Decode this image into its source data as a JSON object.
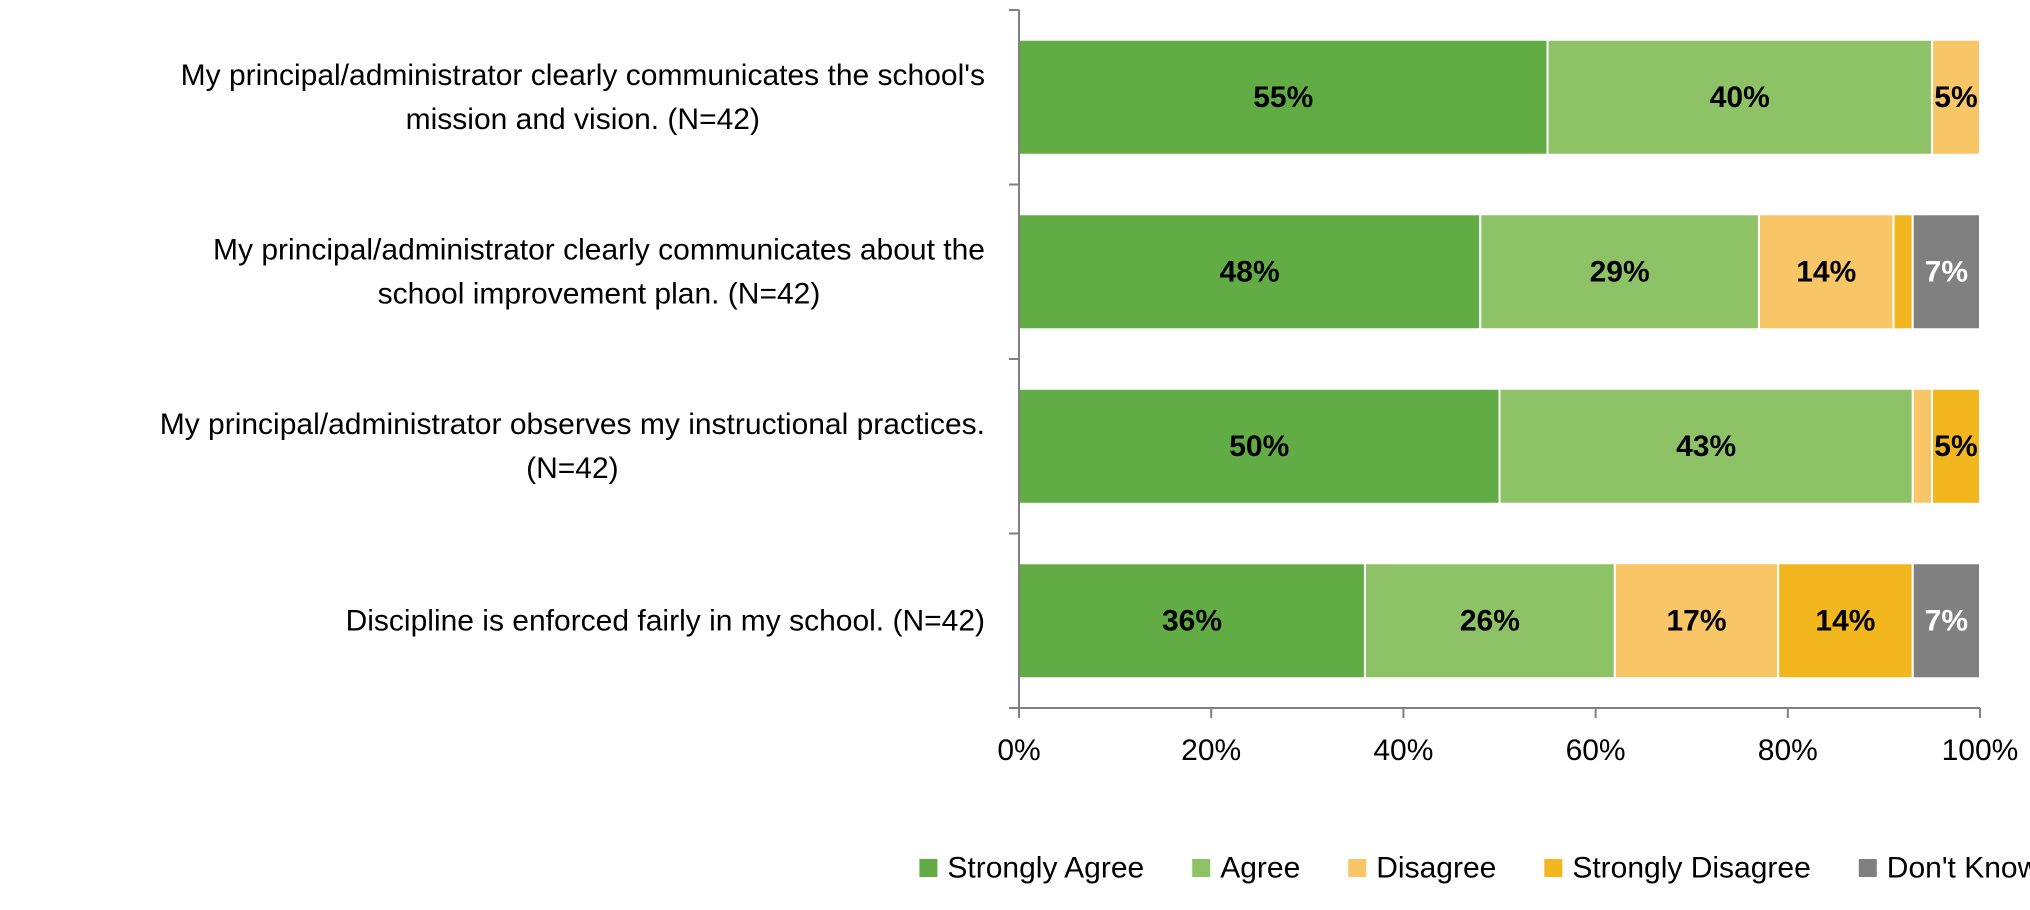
{
  "chart_data": {
    "type": "bar",
    "orientation": "horizontal",
    "stacked": "percent",
    "categories": [
      [
        "My principal/administrator clearly communicates the school's",
        "mission and vision. (N=42)"
      ],
      [
        "My principal/administrator clearly communicates about the",
        "school improvement plan. (N=42)"
      ],
      [
        "My principal/administrator observes my instructional practices.",
        "(N=42)"
      ],
      [
        "Discipline is enforced fairly in my school. (N=42)"
      ]
    ],
    "series": [
      {
        "name": "Strongly Agree",
        "color": "#62AC46",
        "label_color": "#000000",
        "values": [
          55,
          48,
          50,
          36
        ],
        "labels": [
          "55%",
          "48%",
          "50%",
          "36%"
        ]
      },
      {
        "name": "Agree",
        "color": "#8DC366",
        "label_color": "#000000",
        "values": [
          40,
          29,
          43,
          26
        ],
        "labels": [
          "40%",
          "29%",
          "43%",
          "26%"
        ]
      },
      {
        "name": "Disagree",
        "color": "#F8C567",
        "label_color": "#000000",
        "values": [
          5,
          14,
          2,
          17
        ],
        "labels": [
          "5%",
          "14%",
          "",
          "17%"
        ]
      },
      {
        "name": "Strongly Disagree",
        "color": "#F2B61F",
        "label_color": "#000000",
        "values": [
          0,
          2,
          5,
          14
        ],
        "labels": [
          "",
          "",
          "5%",
          "14%"
        ]
      },
      {
        "name": "Don't Know",
        "color": "#808080",
        "label_color": "#FFFFFF",
        "values": [
          0,
          7,
          0,
          7
        ],
        "labels": [
          "",
          "7%",
          "",
          "7%"
        ]
      }
    ],
    "x_ticks": [
      "0%",
      "20%",
      "40%",
      "60%",
      "80%",
      "100%"
    ],
    "xlim": [
      0,
      100
    ],
    "xlabel": "",
    "ylabel": "",
    "title": "",
    "grid": false,
    "legend_position": "bottom"
  }
}
